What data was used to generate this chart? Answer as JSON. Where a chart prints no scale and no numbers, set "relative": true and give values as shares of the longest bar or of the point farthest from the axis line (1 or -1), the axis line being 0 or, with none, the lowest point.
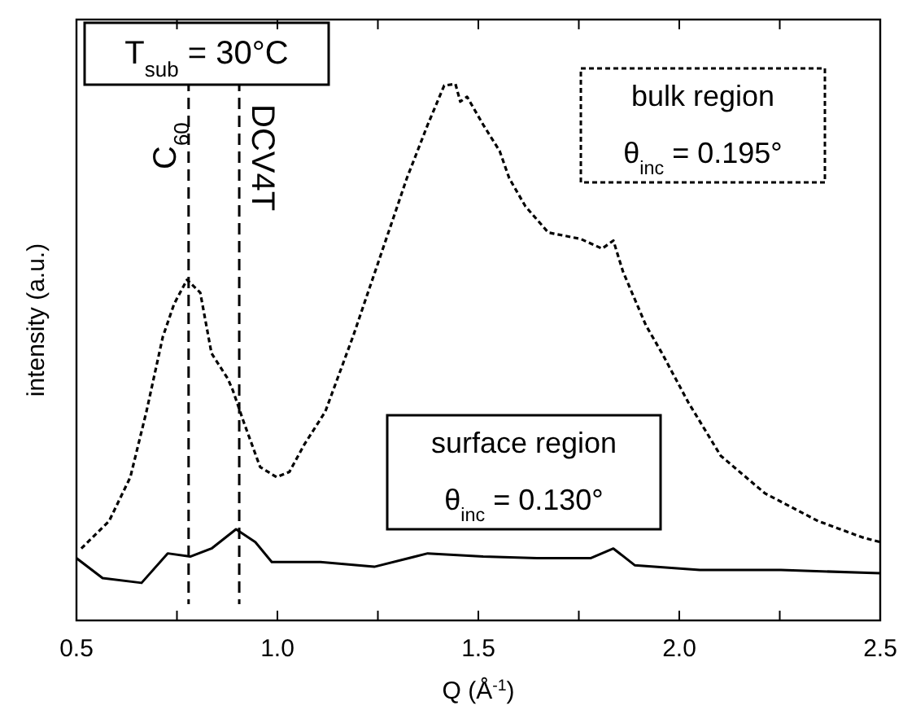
{
  "chart_data": {
    "type": "line",
    "relative": true,
    "xlabel": "Q (Å$^{-1}$)",
    "ylabel": "intensity (a.u.)",
    "xlim": [
      0.5,
      2.5
    ],
    "xticks": [
      0.5,
      {
        "value": 0.75,
        "label": null
      },
      {
        "value": 1,
        "label": "1.0"
      },
      {
        "value": 1.25,
        "label": null
      },
      1.5,
      {
        "value": 1.75,
        "label": null
      },
      {
        "value": 2,
        "label": "2.0"
      },
      {
        "value": 2.25,
        "label": null
      },
      2.5
    ],
    "series": [
      {
        "color": "#000000",
        "line_style": "dotted",
        "x": [
          0.512,
          0.581,
          0.634,
          0.674,
          0.715,
          0.743,
          0.775,
          0.808,
          0.836,
          0.877,
          0.889,
          0.917,
          0.957,
          0.998,
          1.03,
          1.067,
          1.119,
          1.188,
          1.253,
          1.322,
          1.374,
          1.415,
          1.443,
          1.455,
          1.472,
          1.512,
          1.553,
          1.577,
          1.617,
          1.674,
          1.755,
          1.808,
          1.836,
          1.86,
          1.917,
          1.957,
          2.022,
          2.103,
          2.213,
          2.346,
          2.455,
          2.5
        ],
        "values": [
          0.134,
          0.185,
          0.267,
          0.389,
          0.529,
          0.59,
          0.635,
          0.611,
          0.498,
          0.45,
          0.429,
          0.368,
          0.286,
          0.267,
          0.277,
          0.328,
          0.389,
          0.529,
          0.672,
          0.824,
          0.924,
          0.997,
          1,
          0.967,
          0.976,
          0.924,
          0.875,
          0.824,
          0.772,
          0.723,
          0.711,
          0.693,
          0.708,
          0.65,
          0.55,
          0.498,
          0.407,
          0.307,
          0.237,
          0.185,
          0.155,
          0.146
        ]
      },
      {
        "color": "#000000",
        "line_style": "solid",
        "x": [
          0.5,
          0.565,
          0.662,
          0.727,
          0.783,
          0.836,
          0.897,
          0.945,
          0.986,
          1.107,
          1.241,
          1.374,
          1.512,
          1.646,
          1.779,
          1.836,
          1.889,
          2.051,
          2.253,
          2.5
        ],
        "values": [
          0.116,
          0.079,
          0.07,
          0.125,
          0.119,
          0.134,
          0.17,
          0.146,
          0.109,
          0.109,
          0.1,
          0.125,
          0.119,
          0.116,
          0.116,
          0.134,
          0.103,
          0.094,
          0.094,
          0.088
        ]
      }
    ],
    "ref_lines": [
      {
        "axis": "x",
        "value": 0.779,
        "label": "C$_{60}$",
        "line_style": "dashed"
      },
      {
        "axis": "x",
        "value": 0.905,
        "label": "DCV4T",
        "line_style": "dashed"
      }
    ],
    "annotations": [
      "T$_{sub}$ = 30°C",
      "bulk region\nθ$_{inc}$ = 0.195°",
      "surface region\nθ$_{inc}$ = 0.130°"
    ]
  }
}
